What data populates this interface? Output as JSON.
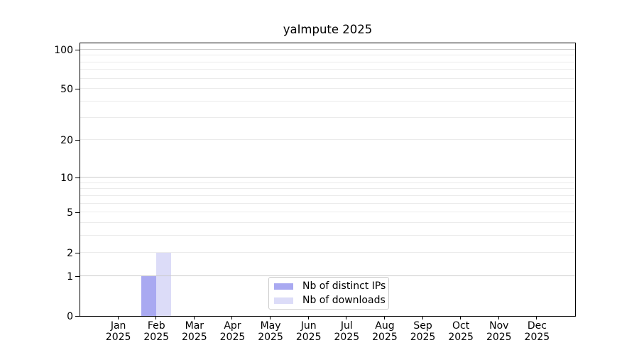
{
  "chart_data": {
    "type": "bar",
    "title": "yaImpute 2025",
    "categories": [
      "Jan",
      "Feb",
      "Mar",
      "Apr",
      "May",
      "Jun",
      "Jul",
      "Aug",
      "Sep",
      "Oct",
      "Nov",
      "Dec"
    ],
    "x_year_label": "2025",
    "series": [
      {
        "name": "Nb of distinct IPs",
        "color": "#a9a9f1",
        "values": [
          0,
          1,
          0,
          0,
          0,
          0,
          0,
          0,
          0,
          0,
          0,
          0
        ]
      },
      {
        "name": "Nb of downloads",
        "color": "#dcdcf8",
        "values": [
          0,
          2,
          0,
          0,
          0,
          0,
          0,
          0,
          0,
          0,
          0,
          0
        ]
      }
    ],
    "yscale": "log1p",
    "ylim": [
      0,
      111.5
    ],
    "ytick_values": [
      100,
      50,
      20,
      10,
      5,
      2,
      1,
      0
    ],
    "ytick_labels": [
      "100",
      "50",
      "20",
      "10",
      "5",
      "2",
      "1",
      "0"
    ],
    "grid_major_values": [
      1,
      10,
      100
    ],
    "grid_minor_values": [
      2,
      3,
      4,
      5,
      6,
      7,
      8,
      9,
      20,
      30,
      40,
      50,
      60,
      70,
      80,
      90
    ],
    "legend_position": "lower center",
    "colors": {
      "grid_major": "#c9c9c9",
      "grid_minor": "#ebebeb",
      "spine": "#000000",
      "text": "#000000",
      "background": "#ffffff"
    }
  }
}
